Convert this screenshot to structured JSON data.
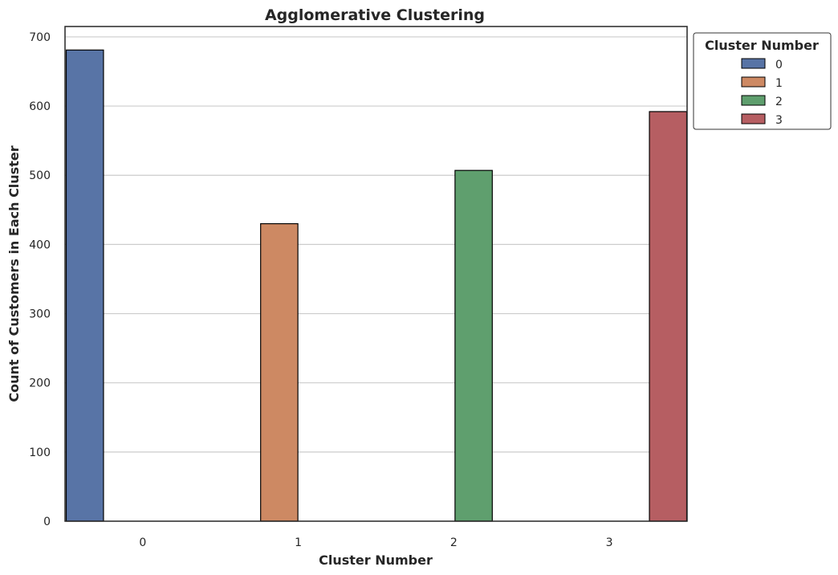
{
  "chart_data": {
    "type": "bar",
    "title": "Agglomerative Clustering",
    "xlabel": "Cluster Number",
    "ylabel": "Count of Customers in Each Cluster",
    "categories": [
      "0",
      "1",
      "2",
      "3"
    ],
    "values": [
      681,
      430,
      507,
      592
    ],
    "ylim": [
      0,
      715
    ],
    "yticks": [
      0,
      100,
      200,
      300,
      400,
      500,
      600,
      700
    ],
    "grid": "horizontal",
    "legend": {
      "title": "Cluster Number",
      "placement": "outside-top-right",
      "entries": [
        "0",
        "1",
        "2",
        "3"
      ]
    },
    "colors": [
      "#5874a6",
      "#cd8963",
      "#5f9f6e",
      "#b65e62"
    ],
    "edge_color": "#000000"
  }
}
